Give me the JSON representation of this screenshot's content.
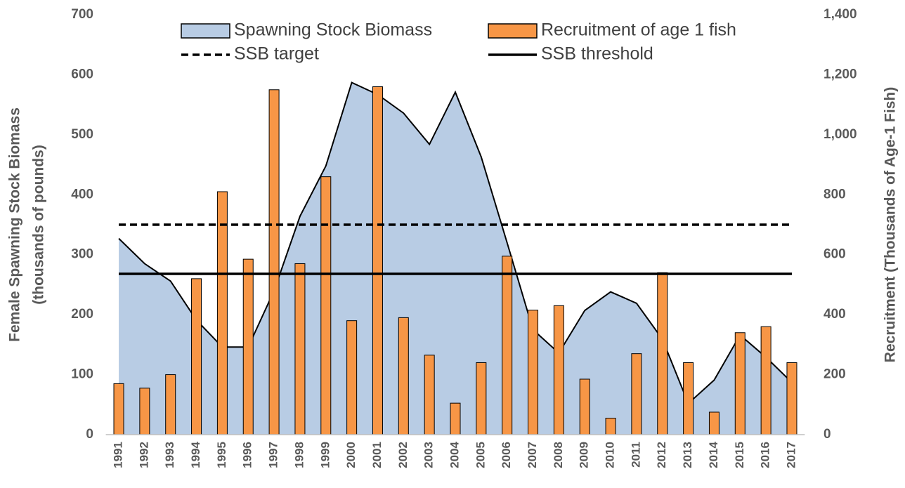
{
  "chart_data": {
    "type": "bar-area-combo",
    "ylabel": [
      "Female Spawning Stock Biomass",
      "(thousands of pounds)"
    ],
    "y2label": "Recruitment (Thousands of Age-1 Fish)",
    "categories": [
      "1991",
      "1992",
      "1993",
      "1994",
      "1995",
      "1996",
      "1997",
      "1998",
      "1999",
      "2000",
      "2001",
      "2002",
      "2003",
      "2004",
      "2005",
      "2006",
      "2007",
      "2008",
      "2009",
      "2010",
      "2011",
      "2012",
      "2013",
      "2014",
      "2015",
      "2016",
      "2017"
    ],
    "series": [
      {
        "name": "Spawning Stock Biomass",
        "type": "area",
        "axis": "y",
        "color": "#b8cce4",
        "values": [
          327,
          285,
          256,
          191,
          146,
          146,
          240,
          364,
          448,
          587,
          567,
          536,
          484,
          571,
          463,
          320,
          175,
          136,
          207,
          238,
          219,
          159,
          52,
          91,
          166,
          129,
          87
        ]
      },
      {
        "name": "Recruitment of age 1 fish",
        "type": "bar",
        "axis": "y2",
        "color": "#f79646",
        "values": [
          170,
          155,
          200,
          520,
          810,
          585,
          1150,
          570,
          860,
          380,
          1160,
          390,
          265,
          105,
          240,
          595,
          415,
          430,
          185,
          55,
          270,
          540,
          240,
          75,
          340,
          360,
          240
        ]
      }
    ],
    "reference_lines": [
      {
        "name": "SSB target",
        "value": 350,
        "style": "dashed",
        "color": "#000000"
      },
      {
        "name": "SSB threshold",
        "value": 268,
        "style": "solid",
        "color": "#000000"
      }
    ],
    "ylim": [
      0,
      700
    ],
    "yticks": [
      0,
      100,
      200,
      300,
      400,
      500,
      600,
      700
    ],
    "y2lim": [
      0,
      1400
    ],
    "y2ticks": [
      0,
      200,
      400,
      600,
      800,
      {
        "value": 1000,
        "label": "1,000"
      },
      {
        "value": 1200,
        "label": "1,200"
      },
      {
        "value": 1400,
        "label": "1,400"
      }
    ]
  }
}
